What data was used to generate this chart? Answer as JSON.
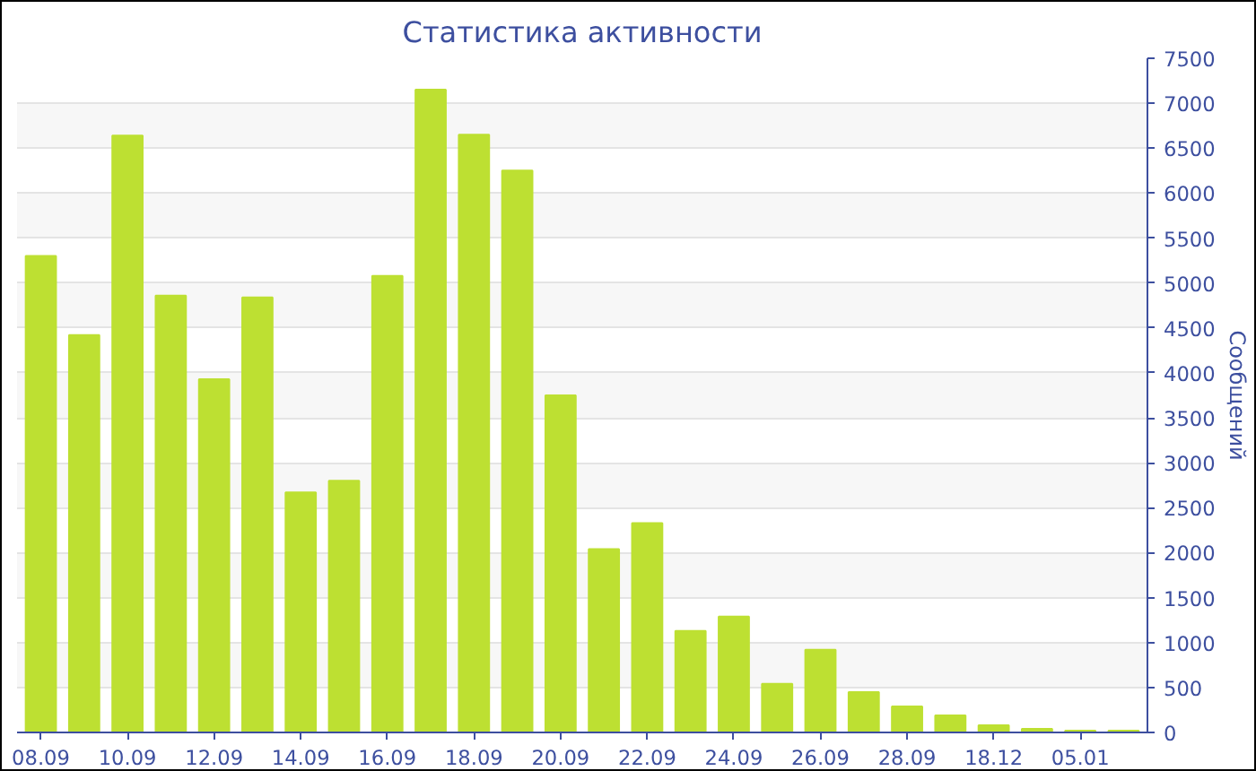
{
  "chart_data": {
    "type": "bar",
    "title": "Статистика активности",
    "ylabel": "Сообщений",
    "categories": [
      "08.09",
      null,
      "10.09",
      null,
      "12.09",
      null,
      "14.09",
      null,
      "16.09",
      null,
      "18.09",
      null,
      "20.09",
      null,
      "22.09",
      null,
      "24.09",
      null,
      "26.09",
      null,
      "28.09",
      null,
      "18.12",
      null,
      "05.01",
      null
    ],
    "values": [
      5300,
      4420,
      6640,
      4860,
      3930,
      4840,
      2670,
      2800,
      5080,
      7150,
      6650,
      6250,
      3750,
      2040,
      2330,
      1130,
      1290,
      540,
      920,
      450,
      290,
      190,
      80,
      40,
      20,
      20
    ],
    "color": "#bde032",
    "ylim": [
      0,
      7500
    ],
    "yticks": [
      0,
      500,
      1000,
      1500,
      2000,
      2500,
      3000,
      3500,
      4000,
      4500,
      5000,
      5500,
      6000,
      6500,
      7000,
      7500
    ],
    "grid": "y"
  }
}
